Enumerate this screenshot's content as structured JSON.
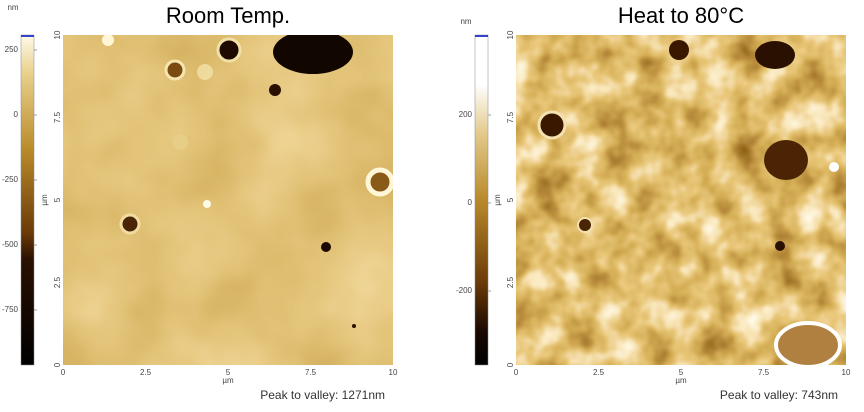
{
  "panels": [
    {
      "title": "Room Temp.",
      "colorbar": {
        "unit": "nm",
        "ticks": [
          250,
          0,
          -250,
          -500,
          -750
        ]
      },
      "y_ticks": [
        0,
        2.5,
        5,
        7.5,
        10
      ],
      "y_label": "µm",
      "x_ticks": [
        0,
        2.5,
        5,
        7.5,
        10
      ],
      "x_label": "µm",
      "footer": "Peak to valley: 1271nm"
    },
    {
      "title": "Heat to 80°C",
      "colorbar": {
        "unit": "nm",
        "ticks": [
          200,
          0,
          -200
        ]
      },
      "y_ticks": [
        0,
        2.5,
        5,
        7.5,
        10
      ],
      "y_label": "µm",
      "x_ticks": [
        0,
        2.5,
        5,
        7.5,
        10
      ],
      "x_label": "µm",
      "footer": "Peak to valley: 743nm"
    }
  ]
}
